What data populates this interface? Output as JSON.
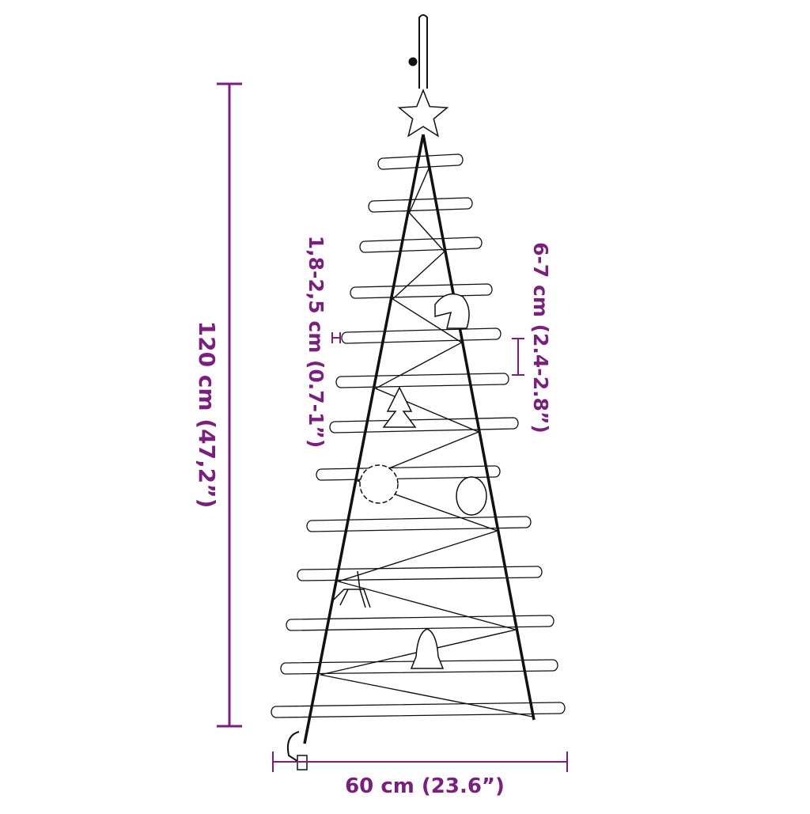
{
  "colors": {
    "dimension": "#7b1f7e",
    "drawing": "#111111"
  },
  "dimensions": {
    "height": "120 cm (47,2”)",
    "width": "60 cm (23.6”)",
    "stick_diameter": "1,8-2,5 cm (0.7-1”)",
    "stick_spacing": "6-7 cm (2.4-2.8”)"
  },
  "ornaments": [
    "star",
    "horse-head",
    "tree",
    "snowflake",
    "bauble",
    "reindeer",
    "bell"
  ]
}
